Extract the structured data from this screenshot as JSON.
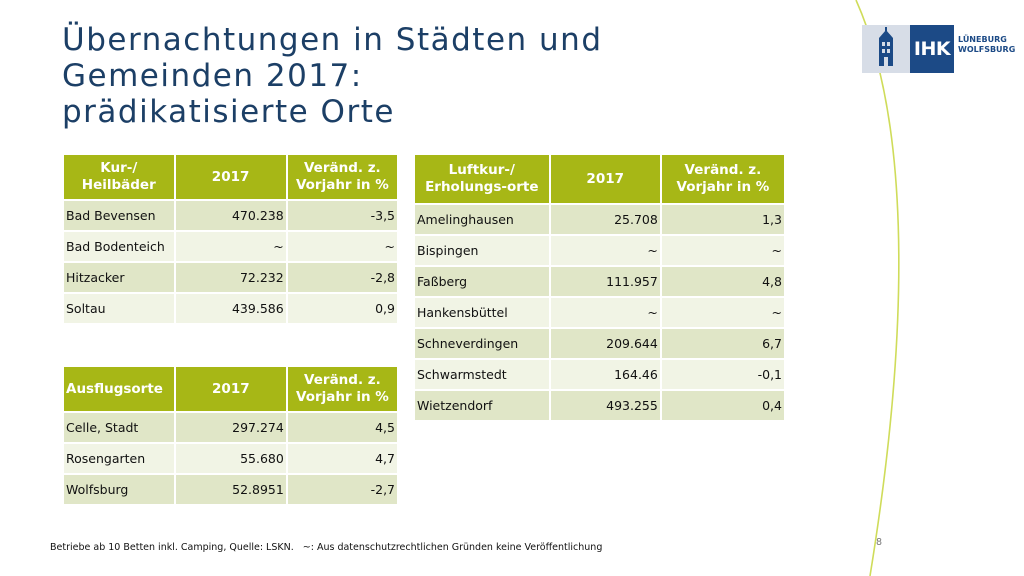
{
  "title_lines": [
    "Übernachtungen in Städten und",
    "Gemeinden 2017:",
    "prädikatisierte Orte"
  ],
  "logo": {
    "text": "IHK",
    "city_lines": [
      "LÜNEBURG",
      "WOLFSBURG"
    ],
    "icon": "building-tower-icon"
  },
  "kur": {
    "headers": [
      "Kur-/ Heilbäder",
      "2017",
      "Veränd. z. Vorjahr in %"
    ],
    "rows": [
      [
        "Bad Bevensen",
        "470.238",
        "-3,5"
      ],
      [
        "Bad Bodenteich",
        "~",
        "~"
      ],
      [
        "Hitzacker",
        "72.232",
        "-2,8"
      ],
      [
        "Soltau",
        "439.586",
        "0,9"
      ]
    ]
  },
  "ausflug": {
    "headers": [
      "Ausflugsorte",
      "2017",
      "Veränd. z. Vorjahr in %"
    ],
    "rows": [
      [
        "Celle, Stadt",
        "297.274",
        "4,5"
      ],
      [
        "Rosengarten",
        "55.680",
        "4,7"
      ],
      [
        "Wolfsburg",
        "52.8951",
        "-2,7"
      ]
    ]
  },
  "luft": {
    "headers": [
      "Luftkur-/ Erholungs-orte",
      "2017",
      "Veränd. z. Vorjahr in %"
    ],
    "rows": [
      [
        "Amelinghausen",
        "25.708",
        "1,3"
      ],
      [
        "Bispingen",
        "~",
        "~"
      ],
      [
        "Faßberg",
        "111.957",
        "4,8"
      ],
      [
        "Hankensbüttel",
        "~",
        "~"
      ],
      [
        "Schneverdingen",
        "209.644",
        "6,7"
      ],
      [
        "Schwarmstedt",
        "164.46",
        "-0,1"
      ],
      [
        "Wietzendorf",
        "493.255",
        "0,4"
      ]
    ]
  },
  "footnote": "Betriebe ab 10 Betten inkl. Camping, Quelle: LSKN.   ~: Aus datenschutzrechtlichen Gründen keine Veröffentlichung",
  "page_number": "8",
  "colors": {
    "title": "#1c3f66",
    "header": "#a7b716",
    "row_odd": "#e0e6c7",
    "row_even": "#f1f4e5",
    "curve": "#cfdc5a"
  }
}
